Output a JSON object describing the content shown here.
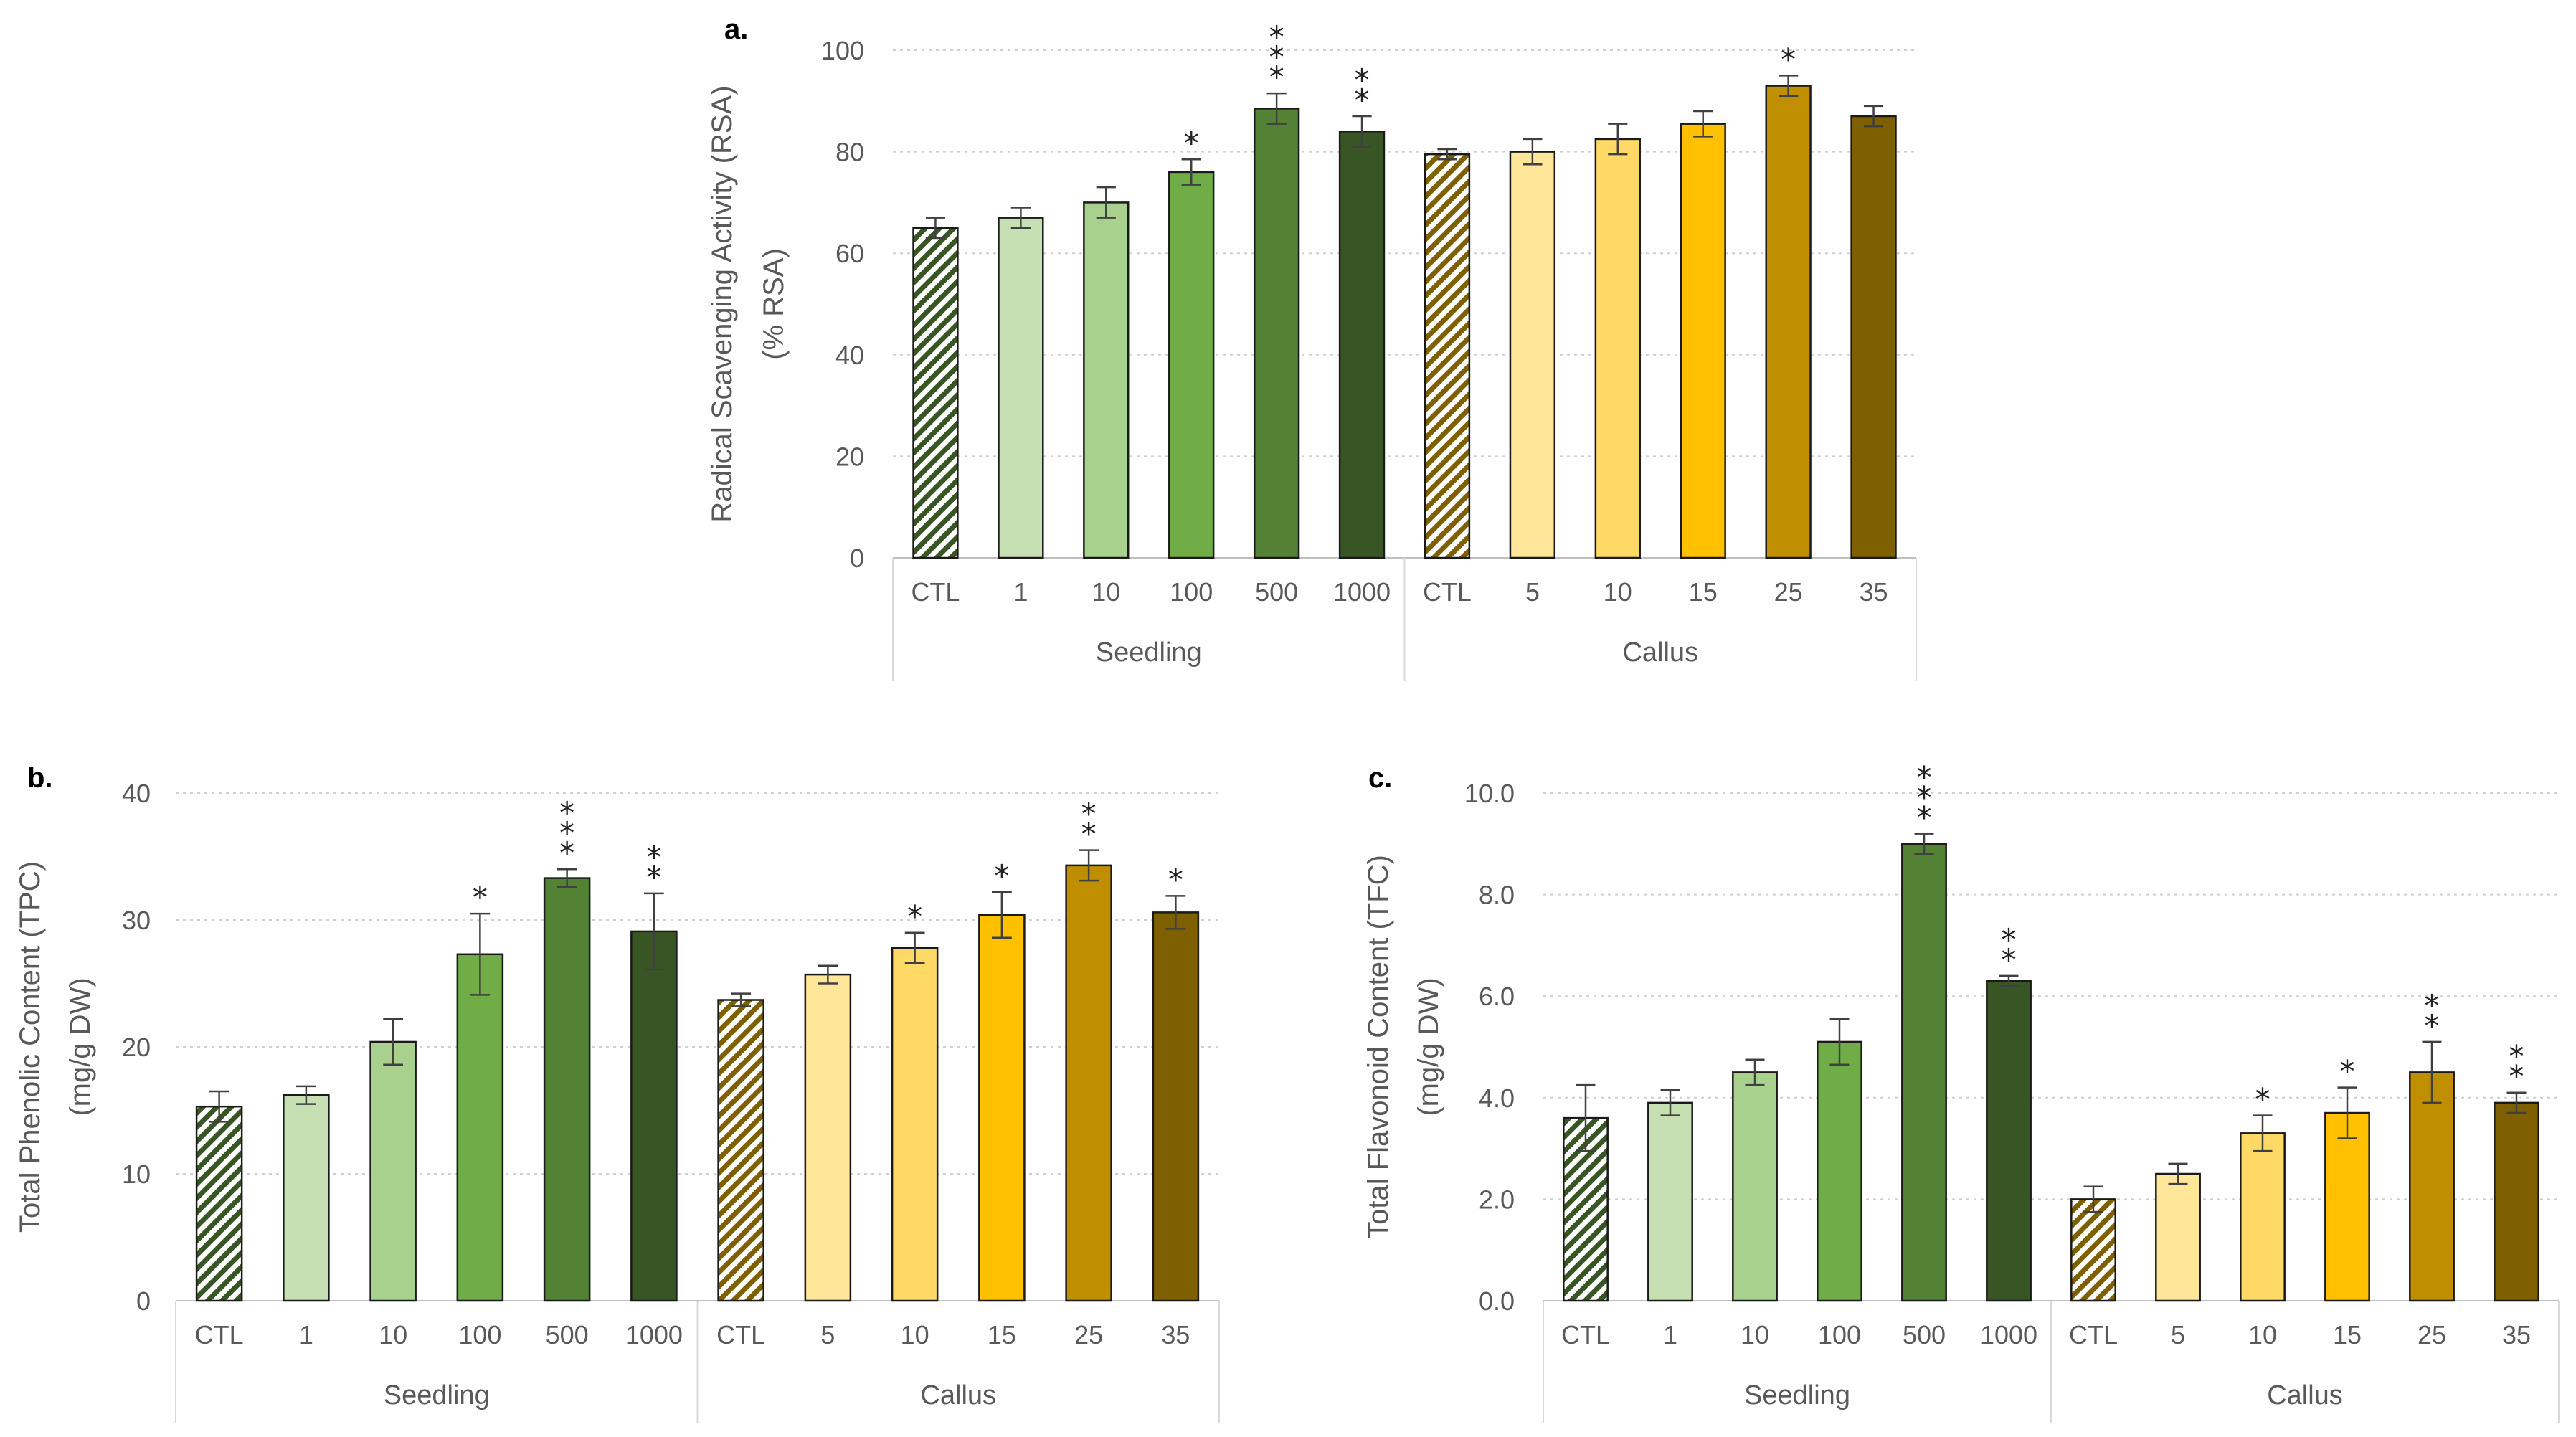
{
  "colors": {
    "seedling": [
      "#ffffff",
      "#c6e0b4",
      "#a9d18e",
      "#70ad47",
      "#548235",
      "#375623"
    ],
    "callus": [
      "#ffffff",
      "#ffe699",
      "#ffd966",
      "#ffc000",
      "#bf8f00",
      "#7f6000"
    ],
    "seedling_hatch": "#375623",
    "callus_hatch": "#7f6000"
  },
  "chart_data": [
    {
      "id": "a",
      "type": "bar",
      "panel_label": "a.",
      "ylabel_line1": "Radical Scavenging Activity (RSA)",
      "ylabel_line2": "(% RSA)",
      "ylim": [
        0,
        100
      ],
      "yticks": [
        "0",
        "20",
        "40",
        "60",
        "80",
        "100"
      ],
      "ytick_values": [
        0,
        20,
        40,
        60,
        80,
        100
      ],
      "grid": true,
      "groups": [
        {
          "name": "Seedling",
          "categories": [
            "CTL",
            "1",
            "10",
            "100",
            "500",
            "1000"
          ],
          "values": [
            65,
            67,
            70,
            76,
            88.5,
            84
          ],
          "errors": [
            2,
            2,
            3,
            2.5,
            3,
            3
          ],
          "significance": [
            "",
            "",
            "",
            "*",
            "***",
            "**"
          ]
        },
        {
          "name": "Callus",
          "categories": [
            "CTL",
            "5",
            "10",
            "15",
            "25",
            "35"
          ],
          "values": [
            79.5,
            80,
            82.5,
            85.5,
            93,
            87
          ],
          "errors": [
            1,
            2.5,
            3,
            2.5,
            2,
            2
          ],
          "significance": [
            "",
            "",
            "",
            "",
            "*",
            ""
          ]
        }
      ]
    },
    {
      "id": "b",
      "type": "bar",
      "panel_label": "b.",
      "ylabel_line1": "Total Phenolic Content (TPC)",
      "ylabel_line2": "(mg/g DW)",
      "ylim": [
        0,
        40
      ],
      "yticks": [
        "0",
        "10",
        "20",
        "30",
        "40"
      ],
      "ytick_values": [
        0,
        10,
        20,
        30,
        40
      ],
      "grid": true,
      "groups": [
        {
          "name": "Seedling",
          "categories": [
            "CTL",
            "1",
            "10",
            "100",
            "500",
            "1000"
          ],
          "values": [
            15.3,
            16.2,
            20.4,
            27.3,
            33.3,
            29.1
          ],
          "errors": [
            1.2,
            0.7,
            1.8,
            3.2,
            0.7,
            3
          ],
          "significance": [
            "",
            "",
            "",
            "*",
            "***",
            "**"
          ]
        },
        {
          "name": "Callus",
          "categories": [
            "CTL",
            "5",
            "10",
            "15",
            "25",
            "35"
          ],
          "values": [
            23.7,
            25.7,
            27.8,
            30.4,
            34.3,
            30.6
          ],
          "errors": [
            0.5,
            0.7,
            1.2,
            1.8,
            1.2,
            1.3
          ],
          "significance": [
            "",
            "",
            "*",
            "*",
            "**",
            "*"
          ]
        }
      ]
    },
    {
      "id": "c",
      "type": "bar",
      "panel_label": "c.",
      "ylabel_line1": "Total Flavonoid Content (TFC)",
      "ylabel_line2": "(mg/g DW)",
      "ylim": [
        0,
        10
      ],
      "yticks": [
        "0.0",
        "2.0",
        "4.0",
        "6.0",
        "8.0",
        "10.0"
      ],
      "ytick_values": [
        0,
        2,
        4,
        6,
        8,
        10
      ],
      "grid": true,
      "groups": [
        {
          "name": "Seedling",
          "categories": [
            "CTL",
            "1",
            "10",
            "100",
            "500",
            "1000"
          ],
          "values": [
            3.6,
            3.9,
            4.5,
            5.1,
            9.0,
            6.3
          ],
          "errors": [
            0.65,
            0.25,
            0.25,
            0.45,
            0.2,
            0.1
          ],
          "significance": [
            "",
            "",
            "",
            "",
            "***",
            "**"
          ]
        },
        {
          "name": "Callus",
          "categories": [
            "CTL",
            "5",
            "10",
            "15",
            "25",
            "35"
          ],
          "values": [
            2.0,
            2.5,
            3.3,
            3.7,
            4.5,
            3.9
          ],
          "errors": [
            0.25,
            0.2,
            0.35,
            0.5,
            0.6,
            0.2
          ],
          "significance": [
            "",
            "",
            "*",
            "*",
            "**",
            "**"
          ]
        }
      ]
    }
  ]
}
